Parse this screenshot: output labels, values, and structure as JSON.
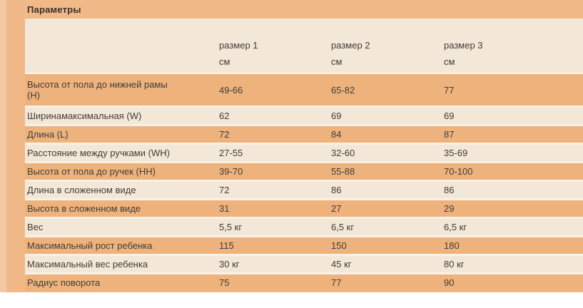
{
  "page": {
    "title": "Параметры"
  },
  "colors": {
    "background_orange": "#f0b987",
    "row_orange": "#eeb37d",
    "row_cream": "#f3e7d8",
    "separator": "#f8f1e7",
    "left_strip": "#f3c8a3",
    "text": "#403c36",
    "bottom_area": "#ffffff"
  },
  "table": {
    "columns": [
      {
        "label": "размер 1",
        "unit": "см"
      },
      {
        "label": "размер 2",
        "unit": "см"
      },
      {
        "label": "размер 3",
        "unit": "см"
      }
    ],
    "rows": [
      {
        "label": "Высота от пола до нижней рамы (H)",
        "values": [
          "49-66",
          "65-82",
          "77"
        ]
      },
      {
        "label": "Ширинамаксимальная (W)",
        "values": [
          "62",
          "69",
          "69"
        ]
      },
      {
        "label": "Длина (L)",
        "values": [
          "72",
          "84",
          "87"
        ]
      },
      {
        "label": "Расстояние между ручками (WH)",
        "values": [
          "27-55",
          "32-60",
          "35-69"
        ]
      },
      {
        "label": "Высота от пола до ручек (HH)",
        "values": [
          "39-70",
          "55-88",
          "70-100"
        ]
      },
      {
        "label": "Длина в сложенном виде",
        "values": [
          "72",
          "86",
          "86"
        ]
      },
      {
        "label": "Высота в сложенном виде",
        "values": [
          "31",
          "27",
          "29"
        ]
      },
      {
        "label": "Вес",
        "values": [
          "5,5 кг",
          "6,5 кг",
          "6,5 кг"
        ]
      },
      {
        "label": "Максимальный рост ребенка",
        "values": [
          "115",
          "150",
          "180"
        ]
      },
      {
        "label": "Максимальный вес ребенка",
        "values": [
          "30 кг",
          "45 кг",
          "80 кг"
        ]
      },
      {
        "label": "Радиус поворота",
        "values": [
          "75",
          "77",
          "90"
        ]
      }
    ]
  }
}
